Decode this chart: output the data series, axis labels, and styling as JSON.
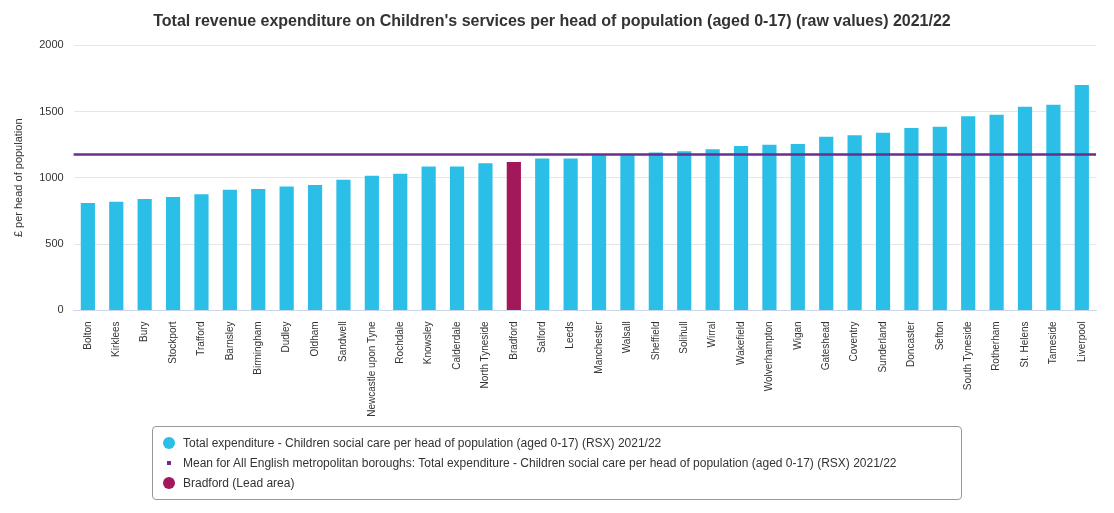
{
  "chart_data": {
    "type": "bar",
    "title": "Total revenue expenditure on Children's services per head of population (aged 0-17) (raw values) 2021/22",
    "ylabel": "£ per head of population",
    "categories": [
      "Bolton",
      "Kirklees",
      "Bury",
      "Stockport",
      "Trafford",
      "Barnsley",
      "Birmingham",
      "Dudley",
      "Oldham",
      "Sandwell",
      "Newcastle upon Tyne",
      "Rochdale",
      "Knowsley",
      "Calderdale",
      "North Tyneside",
      "Bradford",
      "Salford",
      "Leeds",
      "Manchester",
      "Walsall",
      "Sheffield",
      "Solihull",
      "Wirral",
      "Wakefield",
      "Wolverhampton",
      "Wigan",
      "Gateshead",
      "Coventry",
      "Sunderland",
      "Doncaster",
      "Sefton",
      "South Tyneside",
      "Rotherham",
      "St. Helens",
      "Tameside",
      "Liverpool"
    ],
    "series": [
      {
        "name": "Total expenditure - Children social care per head of population (aged 0-17) (RSX) 2021/22",
        "color": "#2bbfe8",
        "values": [
          810,
          820,
          840,
          855,
          875,
          910,
          915,
          935,
          945,
          985,
          1015,
          1030,
          1085,
          1085,
          1110,
          null,
          1145,
          1145,
          1170,
          1170,
          1190,
          1200,
          1215,
          1240,
          1250,
          1255,
          1310,
          1320,
          1340,
          1375,
          1385,
          1465,
          1475,
          1535,
          1550,
          1700
        ]
      },
      {
        "name": "Bradford (Lead area)",
        "color": "#a3185a",
        "values": [
          null,
          null,
          null,
          null,
          null,
          null,
          null,
          null,
          null,
          null,
          null,
          null,
          null,
          null,
          null,
          1120,
          null,
          null,
          null,
          null,
          null,
          null,
          null,
          null,
          null,
          null,
          null,
          null,
          null,
          null,
          null,
          null,
          null,
          null,
          null,
          null
        ]
      }
    ],
    "ref_lines": [
      {
        "axis": "y",
        "value": 1175,
        "label": "Mean for All English metropolitan boroughs: Total expenditure - Children social care per head of population (aged 0-17) (RSX) 2021/22",
        "color": "#6b2d8f"
      }
    ],
    "ylim": [
      0,
      2000
    ],
    "yticks": [
      0,
      500,
      1000,
      1500,
      2000
    ],
    "grid": "y",
    "legend": "bottom"
  }
}
